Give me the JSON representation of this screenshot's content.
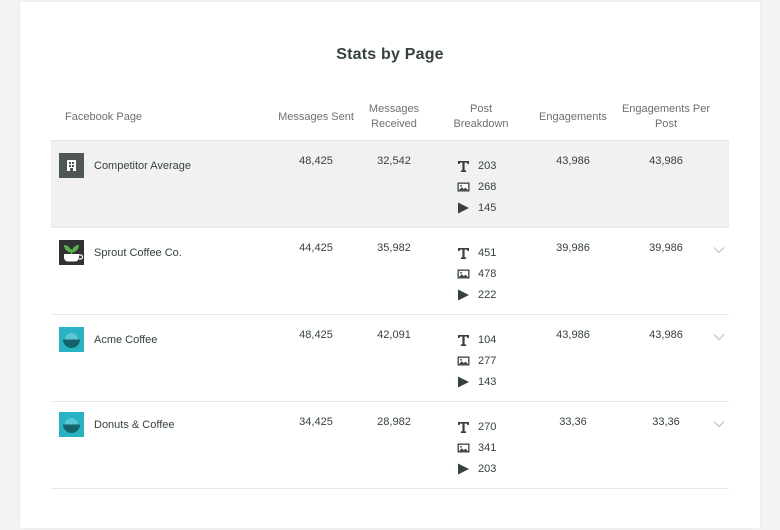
{
  "title": "Stats by Page",
  "headers": {
    "page": "Facebook Page",
    "messages_sent": "Messages Sent",
    "messages_received": "Messages Received",
    "post_breakdown": "Post Breakdown",
    "engagements": "Engagements",
    "engagements_per_post": "Engagements Per Post"
  },
  "rows": [
    {
      "name": "Competitor Average",
      "logo": "building-icon",
      "sent": "48,425",
      "received": "32,542",
      "text_posts": "203",
      "photo_posts": "268",
      "video_posts": "145",
      "engagements": "43,986",
      "per_post": "43,986"
    },
    {
      "name": "Sprout Coffee Co.",
      "logo": "sprout-cup-logo",
      "sent": "44,425",
      "received": "35,982",
      "text_posts": "451",
      "photo_posts": "478",
      "video_posts": "222",
      "engagements": "39,986",
      "per_post": "39,986"
    },
    {
      "name": "Acme Coffee",
      "logo": "teal-cup-logo",
      "sent": "48,425",
      "received": "42,091",
      "text_posts": "104",
      "photo_posts": "277",
      "video_posts": "143",
      "engagements": "43,986",
      "per_post": "43,986"
    },
    {
      "name": "Donuts & Coffee",
      "logo": "teal-cup-logo",
      "sent": "34,425",
      "received": "28,982",
      "text_posts": "270",
      "photo_posts": "341",
      "video_posts": "203",
      "engagements": "33,36",
      "per_post": "33,36"
    }
  ],
  "colors": {
    "text": "#364141",
    "header_text": "#6b7070",
    "avg_bg": "#f1f1f1",
    "avg_icon": "#4f5656",
    "teal": "#29b2c2",
    "sprout_green": "#59b24a"
  }
}
